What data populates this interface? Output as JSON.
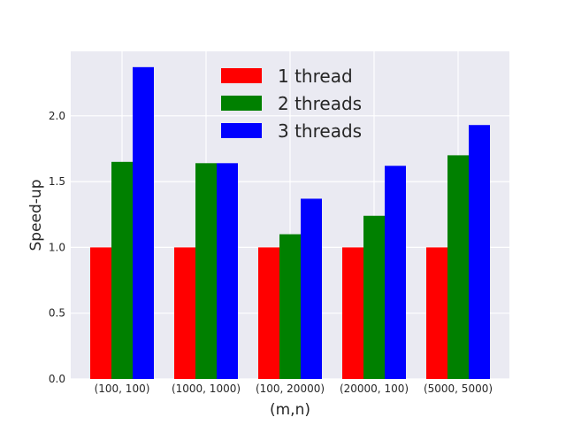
{
  "chart_data": {
    "type": "bar",
    "xlabel": "(m,n)",
    "ylabel": "Speed-up",
    "categories": [
      "(100, 100)",
      "(1000, 1000)",
      "(100, 20000)",
      "(20000, 100)",
      "(5000, 5000)"
    ],
    "series": [
      {
        "name": "1 thread",
        "color": "#ff0000",
        "values": [
          1.0,
          1.0,
          1.0,
          1.0,
          1.0
        ]
      },
      {
        "name": "2 threads",
        "color": "#008000",
        "values": [
          1.65,
          1.64,
          1.1,
          1.24,
          1.7
        ]
      },
      {
        "name": "3 threads",
        "color": "#0000ff",
        "values": [
          2.37,
          1.64,
          1.37,
          1.62,
          1.93
        ]
      }
    ],
    "yticks": [
      "0.0",
      "0.5",
      "1.0",
      "1.5",
      "2.0"
    ],
    "ylim": [
      0,
      2.49
    ],
    "grid": true,
    "legend_position": "top-center",
    "background": "#eaeaf2"
  }
}
